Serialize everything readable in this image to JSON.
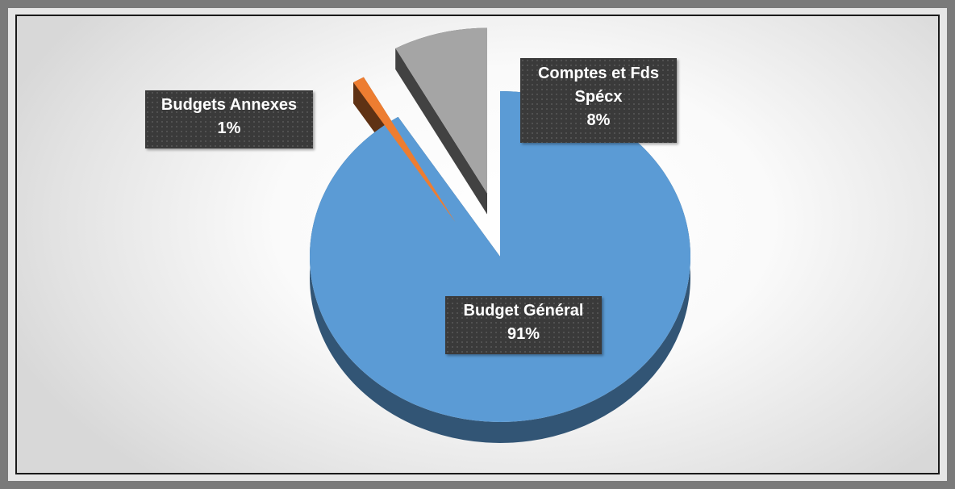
{
  "chart_data": {
    "type": "pie",
    "title": "",
    "slices": [
      {
        "label": "Budget Général",
        "value": 91,
        "percent_label": "91%",
        "color": "#5b9bd5"
      },
      {
        "label": "Budgets Annexes",
        "value": 1,
        "percent_label": "1%",
        "color": "#ed7d31"
      },
      {
        "label": "Comptes et Fds Spécx",
        "value": 8,
        "percent_label": "8%",
        "color": "#a5a5a5"
      }
    ],
    "exploded": true,
    "three_d": true,
    "legend": "none"
  }
}
